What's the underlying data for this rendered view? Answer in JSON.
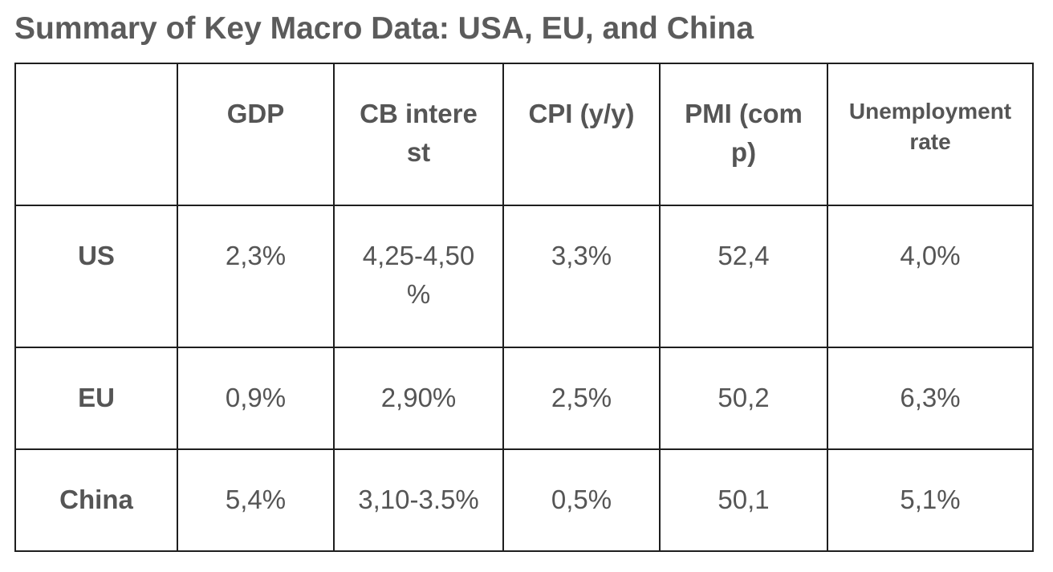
{
  "title": "Summary of Key Macro Data: USA, EU, and China",
  "table": {
    "headers": [
      "",
      "GDP",
      "CB interest",
      "CPI (y/y)",
      "PMI (comp)",
      "Unemployment rate"
    ],
    "rows": [
      {
        "label": "US",
        "cells": [
          "2,3%",
          "4,25-4,50 %",
          "3,3%",
          "52,4",
          "4,0%"
        ]
      },
      {
        "label": "EU",
        "cells": [
          "0,9%",
          "2,90%",
          "2,5%",
          "50,2",
          "6,3%"
        ]
      },
      {
        "label": "China",
        "cells": [
          "5,4%",
          "3,10-3.5%",
          "0,5%",
          "50,1",
          "5,1%"
        ]
      }
    ]
  }
}
